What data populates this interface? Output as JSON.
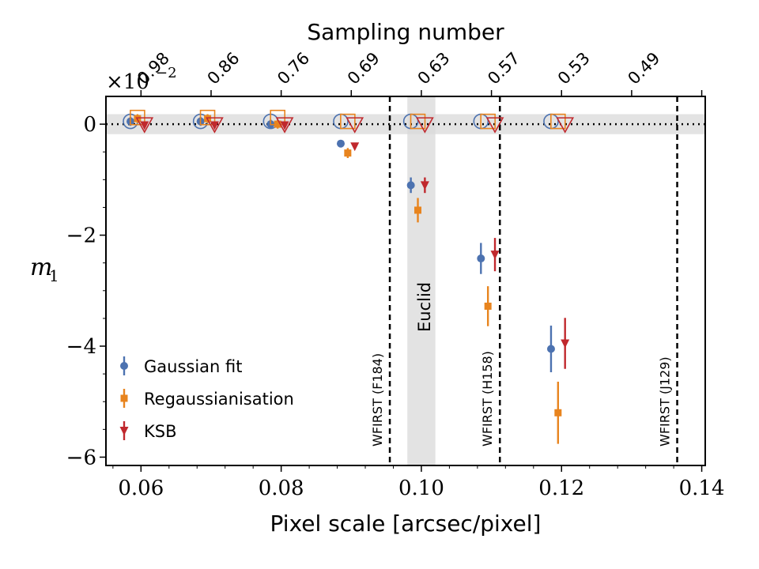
{
  "chart_data": {
    "type": "scatter",
    "xlabel": "Pixel scale [arcsec/pixel]",
    "ylabel": "m",
    "ylabel_subscript": "1",
    "top_xlabel": "Sampling number",
    "y_multiplier": "×10",
    "y_multiplier_exp": "−2",
    "xlim": [
      0.055,
      0.1405
    ],
    "ylim": [
      -6.15,
      0.5
    ],
    "x_ticks": [
      0.06,
      0.08,
      0.1,
      0.12,
      0.14
    ],
    "x_tick_labels": [
      "0.06",
      "0.08",
      "0.10",
      "0.12",
      "0.14"
    ],
    "y_ticks": [
      0,
      -2,
      -4,
      -6
    ],
    "y_tick_labels": [
      "0",
      "−2",
      "−4",
      "−6"
    ],
    "top_ticks": [
      0.06,
      0.07,
      0.08,
      0.09,
      0.1,
      0.11,
      0.12,
      0.13,
      0.14
    ],
    "top_tick_labels": [
      "0.98",
      "0.86",
      "0.76",
      "0.69",
      "0.63",
      "0.57",
      "0.53",
      "0.49"
    ],
    "top_tick_positions": [
      0.06,
      0.07,
      0.08,
      0.09,
      0.1,
      0.11,
      0.12,
      0.13
    ],
    "grid": false,
    "legend_position": "lower-left",
    "zero_band": [
      -0.18,
      0.18
    ],
    "euclid_band": [
      0.098,
      0.102
    ],
    "euclid_label": "Euclid",
    "vertical_lines": [
      {
        "x": 0.0955,
        "label": "WFIRST (F184)"
      },
      {
        "x": 0.1112,
        "label": "WFIRST (H158)"
      },
      {
        "x": 0.1365,
        "label": "WFIRST (J129)"
      }
    ],
    "series": [
      {
        "name": "Gaussian fit",
        "color": "#4c72b0",
        "marker": "circle",
        "x": [
          0.0585,
          0.0685,
          0.0785,
          0.0885,
          0.0985,
          0.1085,
          0.1185
        ],
        "y": [
          0.05,
          0.05,
          0.0,
          -0.35,
          -1.1,
          -2.42,
          -4.05
        ],
        "err": [
          0.08,
          0.08,
          0.08,
          0.05,
          0.14,
          0.28,
          0.42
        ],
        "open_markers_y": [
          0.05,
          0.05,
          0.05,
          0.05,
          0.05,
          0.05,
          0.05
        ],
        "open_markers_x": [
          0.0585,
          0.0685,
          0.0785,
          0.0885,
          0.0985,
          0.1085,
          0.1185
        ]
      },
      {
        "name": "Regaussianisation",
        "color": "#e8841e",
        "marker": "square",
        "x": [
          0.0595,
          0.0695,
          0.0795,
          0.0895,
          0.0995,
          0.1095,
          0.1195
        ],
        "y": [
          0.1,
          0.1,
          0.0,
          -0.52,
          -1.55,
          -3.28,
          -5.2
        ],
        "err": [
          0.08,
          0.08,
          0.08,
          0.09,
          0.22,
          0.36,
          0.56
        ],
        "open_markers_y": [
          0.12,
          0.12,
          0.12,
          0.05,
          0.05,
          0.05,
          0.05
        ],
        "open_markers_x": [
          0.0595,
          0.0695,
          0.0795,
          0.0895,
          0.0995,
          0.1095,
          0.1195
        ]
      },
      {
        "name": "KSB",
        "color": "#c0282d",
        "marker": "triangle-down",
        "x": [
          0.0605,
          0.0705,
          0.0805,
          0.0905,
          0.1005,
          0.1105,
          0.1205
        ],
        "y": [
          -0.02,
          -0.02,
          -0.02,
          -0.4,
          -1.1,
          -2.35,
          -3.95
        ],
        "err": [
          0.05,
          0.05,
          0.05,
          0.04,
          0.14,
          0.3,
          0.46
        ],
        "open_markers_y": [
          0.0,
          0.0,
          0.0,
          0.0,
          0.0,
          0.0,
          0.0
        ],
        "open_markers_x": [
          0.0605,
          0.0705,
          0.0805,
          0.0905,
          0.1005,
          0.1105,
          0.1205
        ]
      }
    ]
  }
}
